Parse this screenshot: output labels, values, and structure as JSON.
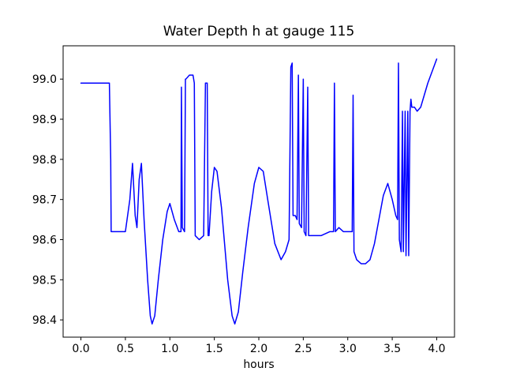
{
  "chart_data": {
    "type": "line",
    "title": "Water Depth h at gauge 115",
    "xlabel": "hours",
    "ylabel": "",
    "line_color": "#0000ff",
    "background_color": "#ffffff",
    "axis_color": "#000000",
    "grid": false,
    "legend": false,
    "xlim": [
      -0.2,
      4.2
    ],
    "ylim": [
      98.357,
      99.083
    ],
    "xticks": [
      0.0,
      0.5,
      1.0,
      1.5,
      2.0,
      2.5,
      3.0,
      3.5,
      4.0
    ],
    "xtick_labels": [
      "0.0",
      "0.5",
      "1.0",
      "1.5",
      "2.0",
      "2.5",
      "3.0",
      "3.5",
      "4.0"
    ],
    "yticks": [
      98.4,
      98.5,
      98.6,
      98.7,
      98.8,
      98.9,
      99.0
    ],
    "ytick_labels": [
      "98.4",
      "98.5",
      "98.6",
      "98.7",
      "98.8",
      "98.9",
      "99.0"
    ],
    "series": [
      {
        "name": "h",
        "x": [
          0.0,
          0.32,
          0.335,
          0.34,
          0.5,
          0.55,
          0.58,
          0.61,
          0.63,
          0.655,
          0.68,
          0.71,
          0.75,
          0.78,
          0.8,
          0.83,
          0.87,
          0.92,
          0.97,
          1.0,
          1.05,
          1.1,
          1.125,
          1.13,
          1.14,
          1.165,
          1.175,
          1.18,
          1.22,
          1.26,
          1.275,
          1.285,
          1.33,
          1.38,
          1.4,
          1.42,
          1.43,
          1.44,
          1.47,
          1.5,
          1.53,
          1.58,
          1.65,
          1.7,
          1.73,
          1.77,
          1.82,
          1.88,
          1.95,
          2.0,
          2.05,
          2.1,
          2.18,
          2.25,
          2.3,
          2.34,
          2.36,
          2.375,
          2.385,
          2.41,
          2.43,
          2.445,
          2.455,
          2.48,
          2.5,
          2.51,
          2.53,
          2.55,
          2.56,
          2.6,
          2.7,
          2.8,
          2.84,
          2.85,
          2.86,
          2.9,
          2.95,
          3.0,
          3.05,
          3.06,
          3.07,
          3.1,
          3.15,
          3.2,
          3.25,
          3.3,
          3.35,
          3.4,
          3.45,
          3.5,
          3.54,
          3.56,
          3.57,
          3.58,
          3.6,
          3.615,
          3.625,
          3.645,
          3.655,
          3.675,
          3.685,
          3.7,
          3.71,
          3.72,
          3.75,
          3.78,
          3.82,
          3.86,
          3.9,
          3.95,
          4.0
        ],
        "y": [
          98.99,
          98.99,
          98.8,
          98.62,
          98.62,
          98.7,
          98.79,
          98.66,
          98.63,
          98.75,
          98.79,
          98.65,
          98.5,
          98.41,
          98.39,
          98.41,
          98.5,
          98.6,
          98.67,
          98.69,
          98.65,
          98.62,
          98.62,
          98.98,
          98.63,
          98.62,
          99.0,
          99.0,
          99.01,
          99.01,
          98.99,
          98.61,
          98.6,
          98.61,
          98.99,
          98.99,
          98.61,
          98.61,
          98.72,
          98.78,
          98.77,
          98.68,
          98.5,
          98.41,
          98.39,
          98.42,
          98.52,
          98.63,
          98.74,
          98.78,
          98.77,
          98.7,
          98.59,
          98.55,
          98.57,
          98.6,
          99.03,
          99.04,
          98.66,
          98.66,
          98.65,
          99.01,
          98.64,
          98.63,
          99.0,
          98.62,
          98.61,
          98.98,
          98.61,
          98.61,
          98.61,
          98.62,
          98.62,
          98.99,
          98.62,
          98.63,
          98.62,
          98.62,
          98.62,
          98.96,
          98.57,
          98.55,
          98.54,
          98.54,
          98.55,
          98.59,
          98.65,
          98.71,
          98.74,
          98.7,
          98.66,
          98.65,
          99.04,
          98.6,
          98.57,
          98.92,
          98.57,
          98.92,
          98.56,
          98.92,
          98.56,
          98.92,
          98.95,
          98.93,
          98.93,
          98.92,
          98.93,
          98.96,
          98.99,
          99.02,
          99.05
        ]
      }
    ]
  }
}
